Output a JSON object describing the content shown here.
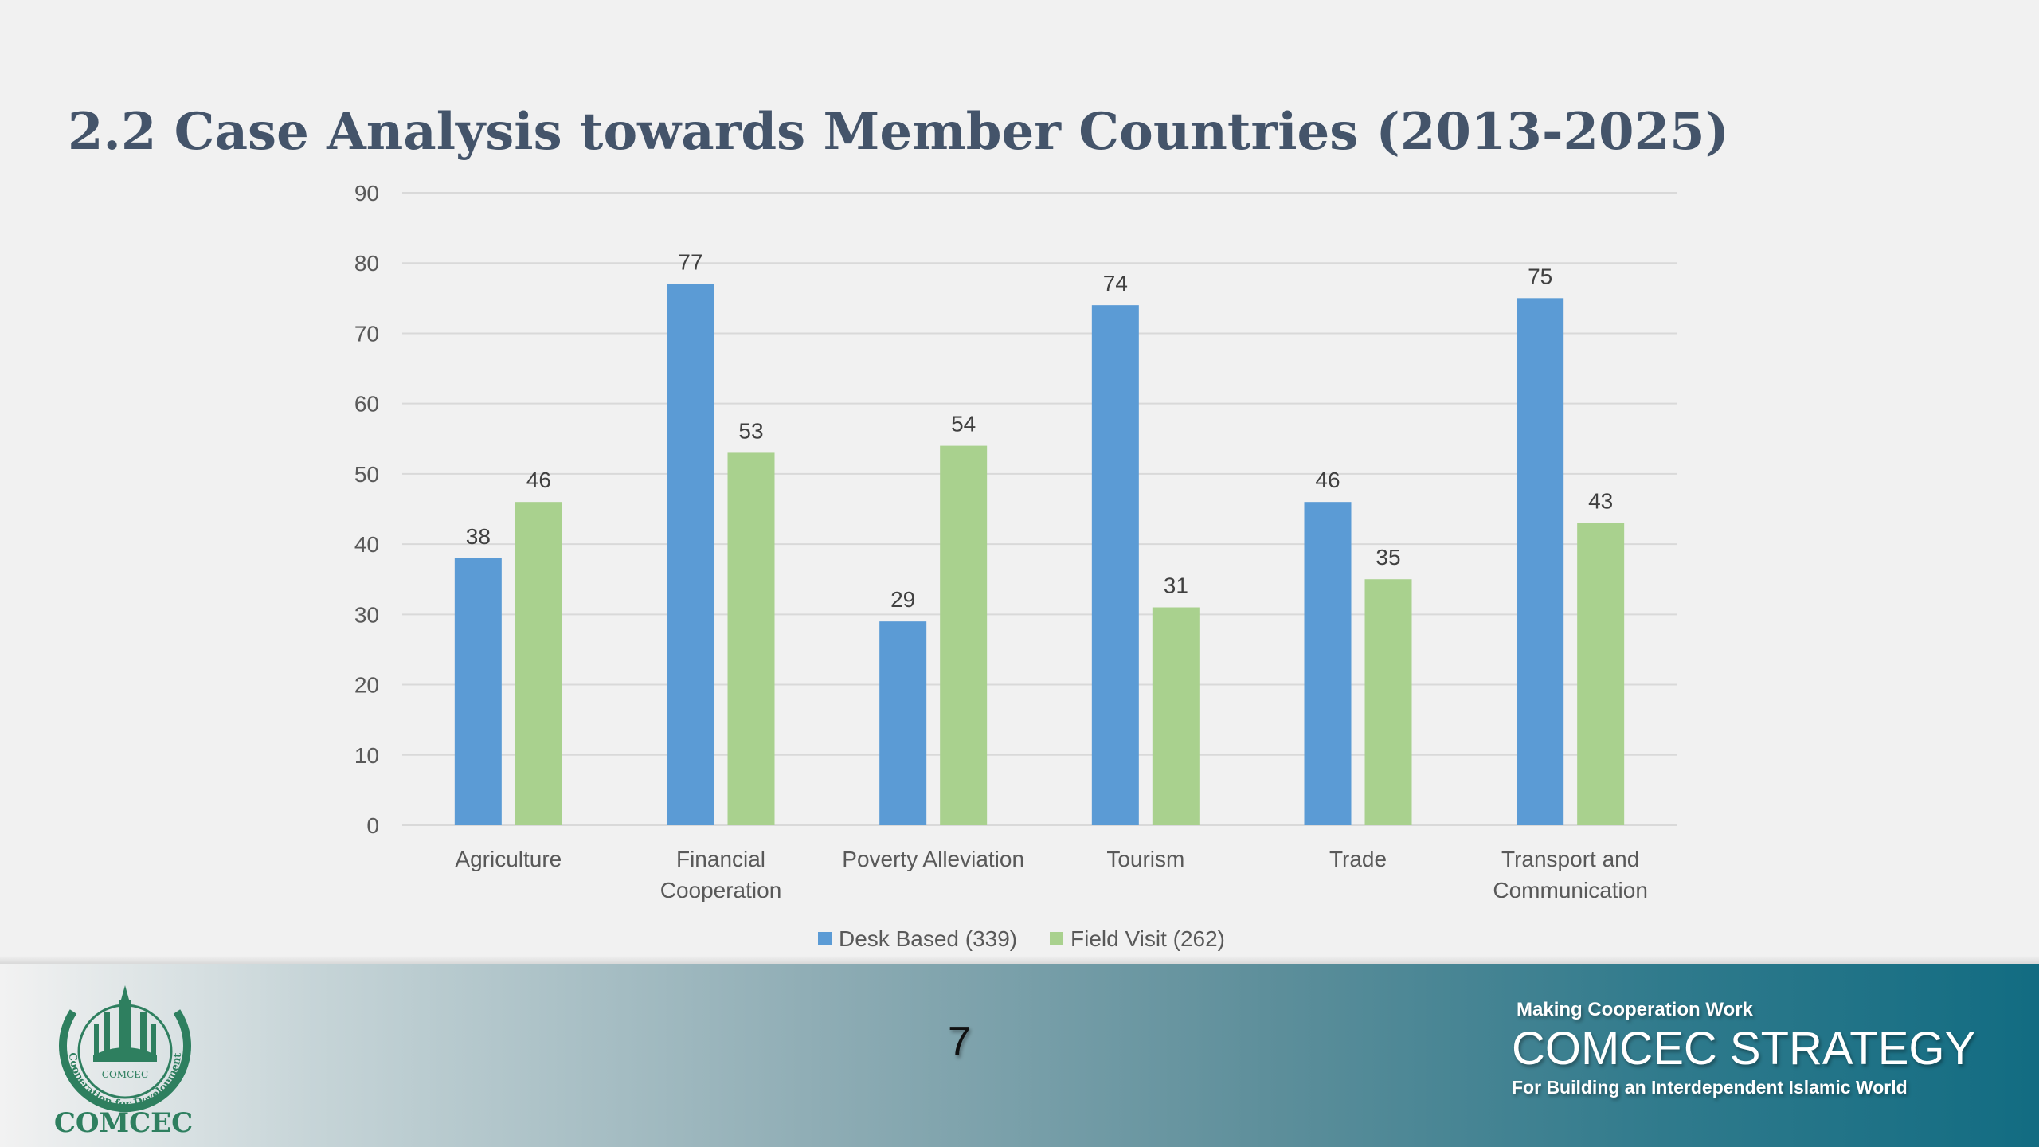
{
  "slide": {
    "title": "2.2 Case Analysis towards Member Countries (2013-2025)",
    "page_number": "7"
  },
  "footer": {
    "logo_text": "COMCEC",
    "logo_ring_text": "Cooperation for Development",
    "logo_inner_text": "COMCEC",
    "tagline": "Making Cooperation Work",
    "brand": "COMCEC STRATEGY",
    "subtitle": "For Building an Interdependent Islamic World"
  },
  "chart_data": {
    "type": "bar",
    "categories": [
      "Agriculture",
      "Financial\nCooperation",
      "Poverty Alleviation",
      "Tourism",
      "Trade",
      "Transport and\nCommunication"
    ],
    "series": [
      {
        "name": "Desk Based (339)",
        "values": [
          38,
          77,
          29,
          74,
          46,
          75
        ],
        "color": "#5b9bd5"
      },
      {
        "name": "Field Visit (262)",
        "values": [
          46,
          53,
          54,
          31,
          35,
          43
        ],
        "color": "#a9d18e"
      }
    ],
    "ylim": [
      0,
      90
    ],
    "yticks": [
      0,
      10,
      20,
      30,
      40,
      50,
      60,
      70,
      80,
      90
    ],
    "grid": true,
    "legend": "bottom",
    "data_labels": true
  }
}
